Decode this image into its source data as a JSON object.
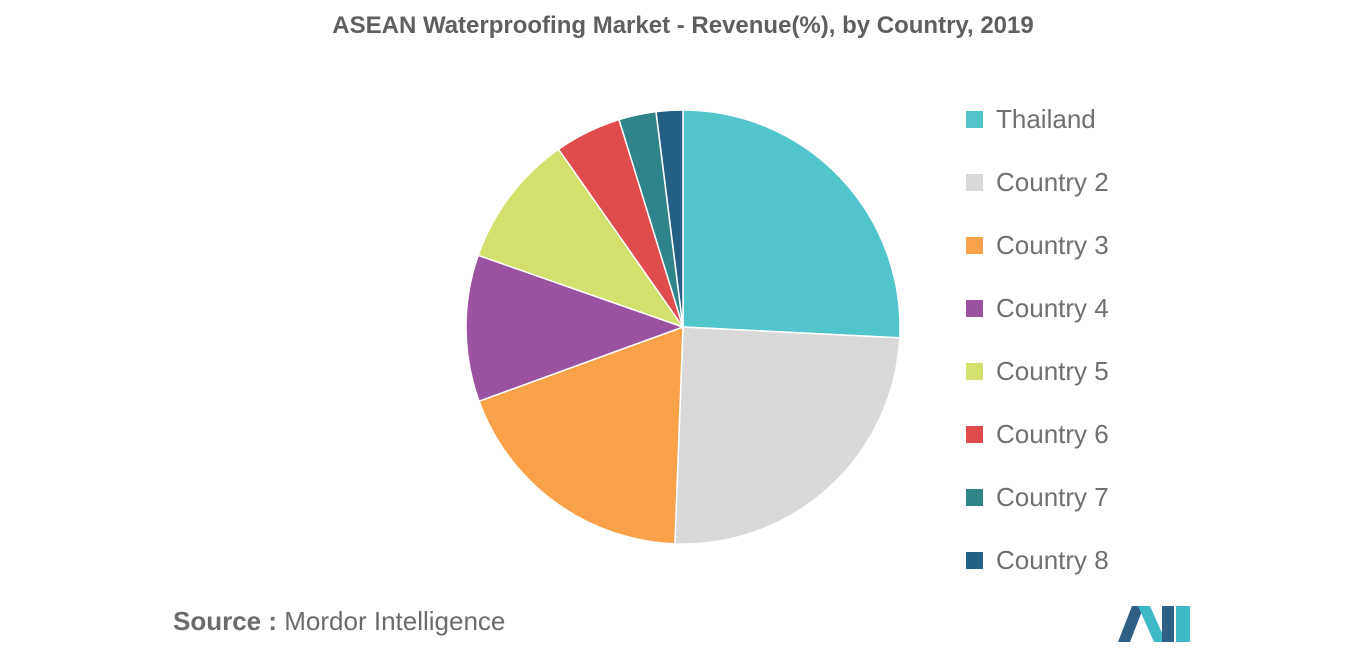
{
  "chart_data": {
    "type": "pie",
    "title": "ASEAN Waterproofing Market - Revenue(%), by Country, 2019",
    "categories": [
      "Thailand",
      "Country 2",
      "Country 3",
      "Country 4",
      "Country 5",
      "Country 6",
      "Country 7",
      "Country 8"
    ],
    "values": [
      26,
      25,
      19,
      11,
      10,
      5,
      2.8,
      2
    ],
    "colors": [
      "#52c4cc",
      "#d9d9d9",
      "#f9a24a",
      "#9b52a0",
      "#d3e06d",
      "#e04b4b",
      "#2f8489",
      "#245f85"
    ],
    "legend_position": "right"
  },
  "source": {
    "label": "Source :",
    "text": "Mordor Intelligence"
  },
  "logo": {
    "icon": "mordor-intelligence-logo",
    "colors": [
      "#2e5f86",
      "#3fb8c8"
    ]
  }
}
